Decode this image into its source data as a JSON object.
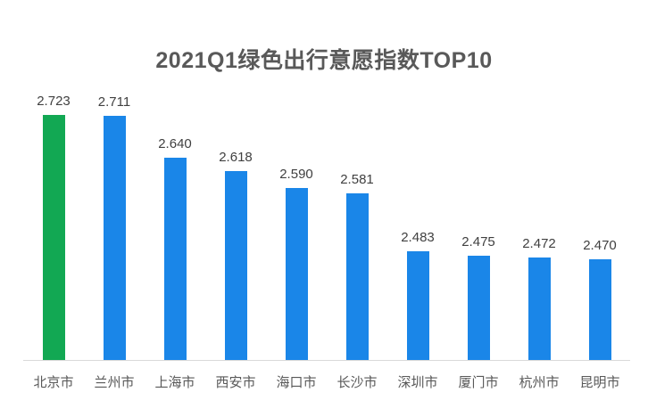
{
  "title": "2021Q1绿色出行意愿指数TOP10",
  "colors": {
    "bar_default": "#1a86e8",
    "bar_highlight": "#12a853",
    "axis_line": "#d9d9d9",
    "title_text": "#595959",
    "value_text": "#404040",
    "category_text": "#595959"
  },
  "chart_data": {
    "type": "bar",
    "title": "2021Q1绿色出行意愿指数TOP10",
    "categories": [
      "北京市",
      "兰州市",
      "上海市",
      "西安市",
      "海口市",
      "长沙市",
      "深圳市",
      "厦门市",
      "杭州市",
      "昆明市"
    ],
    "values": [
      2.723,
      2.711,
      2.64,
      2.618,
      2.59,
      2.581,
      2.483,
      2.475,
      2.472,
      2.47
    ],
    "value_labels": [
      "2.723",
      "2.711",
      "2.640",
      "2.618",
      "2.590",
      "2.581",
      "2.483",
      "2.475",
      "2.472",
      "2.470"
    ],
    "highlight_index": 0,
    "xlabel": "",
    "ylabel": "",
    "ylim": [
      2.3,
      2.75
    ],
    "grid": false,
    "legend": false,
    "value_labels_shown": true,
    "axis_ticks_shown": false
  }
}
